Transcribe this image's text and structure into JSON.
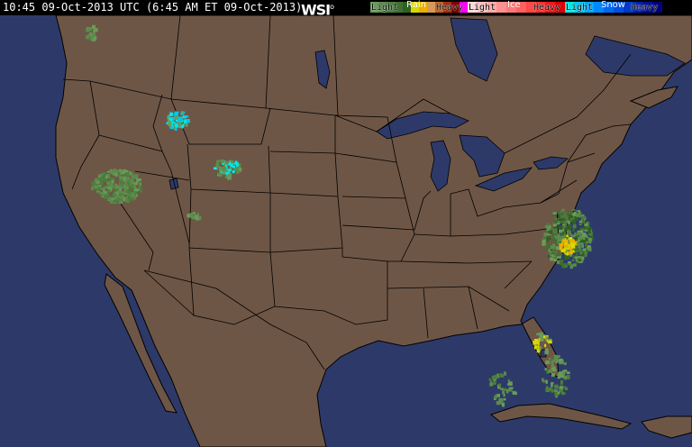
{
  "header": {
    "timestamp": "10:45 09-Oct-2013 UTC (6:45 AM ET 09-Oct-2013)",
    "logo": "WSI"
  },
  "legend": {
    "rain": {
      "title": "Rain",
      "light": "Light",
      "heavy": "Heavy",
      "colors": [
        "#6a9a5a",
        "#5c8c4c",
        "#4d7d3d",
        "#3e6e30",
        "#306020",
        "#d8d800",
        "#e8b000",
        "#d89858",
        "#c06020",
        "#a03010",
        "#800000",
        "#ff00ff"
      ]
    },
    "ice": {
      "title": "Ice",
      "light": "Light",
      "heavy": "Heavy",
      "colors": [
        "#ffd8d8",
        "#ffc0c0",
        "#ffa8a8",
        "#ff9090",
        "#ff7878",
        "#ff6060",
        "#ff4848",
        "#ff3030",
        "#f01818",
        "#e00000"
      ]
    },
    "snow": {
      "title": "Snow",
      "light": "Light",
      "heavy": "Heavy",
      "colors": [
        "#00e8e8",
        "#00c8f0",
        "#00a8ff",
        "#0088ff",
        "#0068f0",
        "#0050e0",
        "#0038c8",
        "#0020b0",
        "#001098",
        "#000080"
      ]
    }
  },
  "map": {
    "land_color": "#6e5646",
    "water_color": "#2d3a69",
    "border_color": "#000000"
  }
}
